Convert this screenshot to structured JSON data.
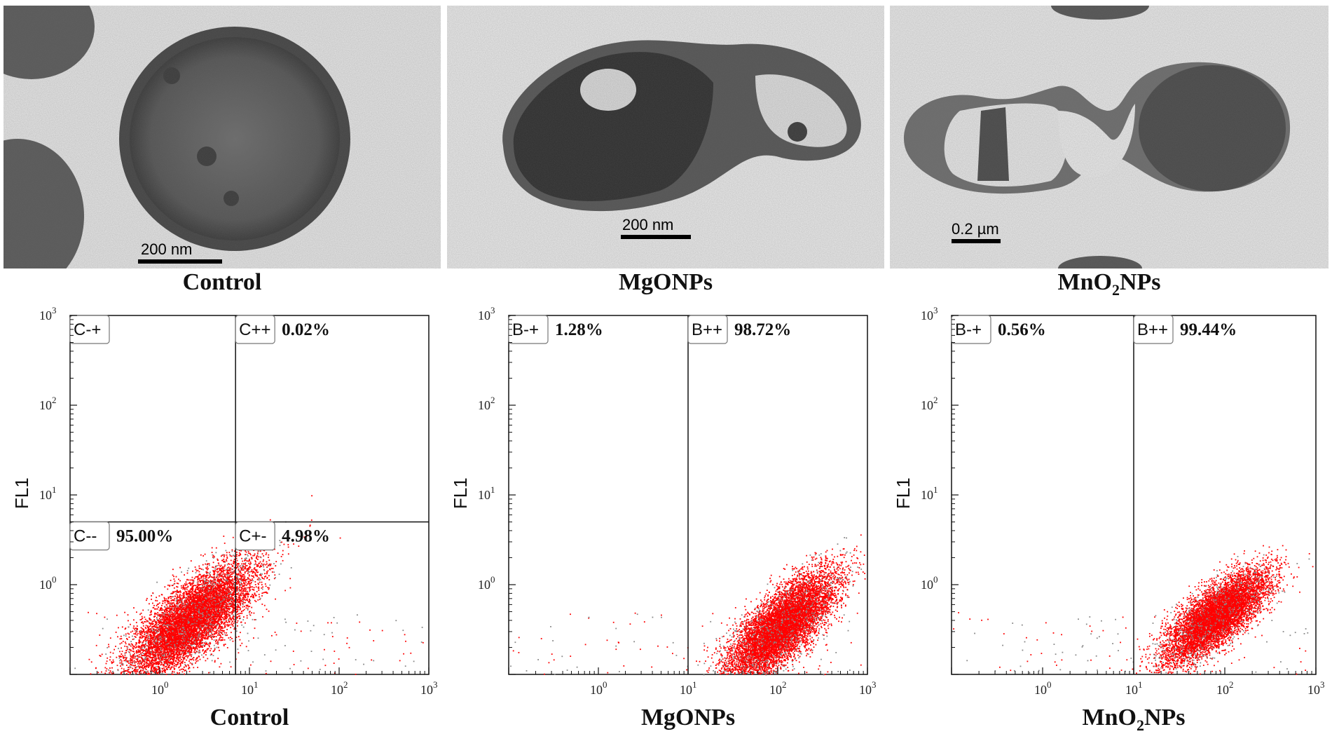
{
  "tem_images": [
    {
      "caption": "Control",
      "scale_label": "200 nm"
    },
    {
      "caption": "MgONPs",
      "scale_label": "200 nm"
    },
    {
      "caption_main": "MnO",
      "caption_sub": "2",
      "caption_tail": "NPs",
      "scale_label": "0.2 µm"
    }
  ],
  "chart_data": [
    {
      "type": "scatter",
      "xlabel": "Control",
      "ylabel": "FL1",
      "x_scale": "log",
      "y_scale": "log",
      "xlim": [
        0.1,
        1000
      ],
      "ylim": [
        0.1,
        1000
      ],
      "x_ticks": [
        "10",
        "10",
        "10",
        "10"
      ],
      "x_tick_exp": [
        "0",
        "1",
        "2",
        "3"
      ],
      "y_ticks": [
        "10",
        "10",
        "10",
        "10"
      ],
      "y_tick_exp": [
        "0",
        "1",
        "2",
        "3"
      ],
      "gate": {
        "x": 7,
        "y": 5
      },
      "quadrants": [
        {
          "label": "C-+",
          "percent": ""
        },
        {
          "label": "C++",
          "percent": "0.02%"
        },
        {
          "label": "C--",
          "percent": "95.00%"
        },
        {
          "label": "C+-",
          "percent": "4.98%"
        }
      ],
      "population": {
        "center_x": 2.2,
        "center_y": 0.4,
        "spread_x": 0.35,
        "spread_y": 0.32,
        "count": 9000,
        "color": "#ff0000"
      }
    },
    {
      "type": "scatter",
      "xlabel": "MgONPs",
      "ylabel": "FL1",
      "x_scale": "log",
      "y_scale": "log",
      "xlim": [
        0.1,
        1000
      ],
      "ylim": [
        0.1,
        1000
      ],
      "x_ticks": [
        "10",
        "10",
        "10",
        "10"
      ],
      "x_tick_exp": [
        "0",
        "1",
        "2",
        "3"
      ],
      "y_ticks": [
        "10",
        "10",
        "10",
        "10"
      ],
      "y_tick_exp": [
        "0",
        "1",
        "2",
        "3"
      ],
      "gate": {
        "x": 10,
        "y": null
      },
      "quadrants": [
        {
          "label": "B-+",
          "percent": "1.28%"
        },
        {
          "label": "B++",
          "percent": "98.72%"
        }
      ],
      "population": {
        "center_x": 110,
        "center_y": 0.35,
        "spread_x": 0.3,
        "spread_y": 0.3,
        "count": 9000,
        "color": "#ff0000"
      }
    },
    {
      "type": "scatter",
      "xlabel_main": "MnO",
      "xlabel_sub": "2",
      "xlabel_tail": "NPs",
      "ylabel": "FL1",
      "x_scale": "log",
      "y_scale": "log",
      "xlim": [
        0.1,
        1000
      ],
      "ylim": [
        0.1,
        1000
      ],
      "x_ticks": [
        "10",
        "10",
        "10",
        "10"
      ],
      "x_tick_exp": [
        "0",
        "1",
        "2",
        "3"
      ],
      "y_ticks": [
        "10",
        "10",
        "10",
        "10"
      ],
      "y_tick_exp": [
        "0",
        "1",
        "2",
        "3"
      ],
      "gate": {
        "x": 10,
        "y": null
      },
      "quadrants": [
        {
          "label": "B-+",
          "percent": "0.56%"
        },
        {
          "label": "B++",
          "percent": "99.44%"
        }
      ],
      "population": {
        "center_x": 80,
        "center_y": 0.45,
        "spread_x": 0.28,
        "spread_y": 0.25,
        "count": 8000,
        "color": "#ff0000"
      }
    }
  ]
}
